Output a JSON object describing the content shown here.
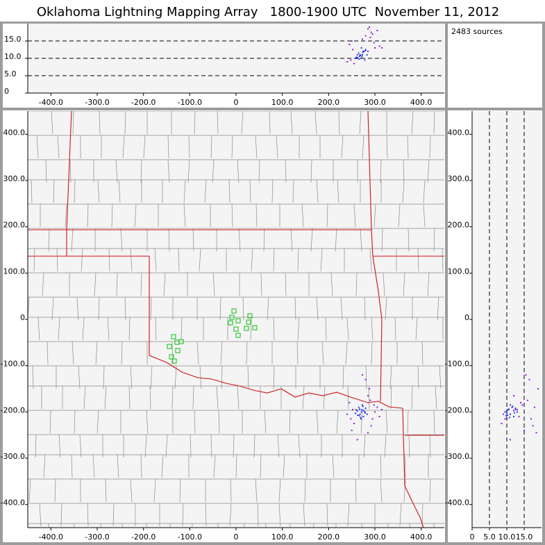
{
  "title": "Oklahoma Lightning Mapping Array   1800-1900 UTC  November 11, 2012",
  "sources_label": "2483 sources",
  "chart_data": [
    {
      "type": "scatter",
      "panel": "top",
      "xlim": [
        -450,
        450
      ],
      "ylim": [
        0,
        20
      ],
      "xticks": [
        {
          "value": -400,
          "label": "-400.0"
        },
        {
          "value": -300,
          "label": "-300.0"
        },
        {
          "value": -200,
          "label": "-200.0"
        },
        {
          "value": -100,
          "label": "-100.0"
        },
        0,
        {
          "value": 100,
          "label": "100.0"
        },
        {
          "value": 200,
          "label": "200.0"
        },
        {
          "value": 300,
          "label": "300.0"
        },
        {
          "value": 400,
          "label": "400.0"
        }
      ],
      "yticks": [
        0,
        {
          "value": 5,
          "label": "5.0"
        },
        {
          "value": 10,
          "label": "10.0"
        },
        {
          "value": 15,
          "label": "15.0"
        }
      ],
      "grid": "y",
      "series": [
        {
          "color": "#9a18d8",
          "x": [
            245,
            290,
            300,
            255,
            295,
            285,
            250,
            305,
            240,
            288,
            310,
            262,
            280,
            298,
            252,
            292,
            273,
            248,
            315,
            285
          ],
          "values": [
            14,
            16,
            13,
            8.5,
            17,
            12,
            15,
            18,
            9,
            19,
            13.5,
            11,
            16.5,
            14.5,
            12.5,
            17.5,
            15.5,
            9.5,
            13,
            18.5
          ]
        },
        {
          "color": "#2a3ae8",
          "x": [
            262,
            268,
            272,
            275,
            278,
            265,
            270,
            280,
            258,
            273,
            266,
            276,
            283,
            260,
            271,
            269,
            274,
            263,
            279,
            267
          ],
          "values": [
            10,
            11,
            10.5,
            12,
            9.5,
            11.5,
            10,
            12.5,
            10,
            11,
            9.8,
            12,
            11,
            10.3,
            13,
            10.8,
            11.7,
            10.2,
            12.2,
            10.6
          ]
        }
      ]
    },
    {
      "type": "scatter",
      "panel": "main",
      "xlim": [
        -450,
        450
      ],
      "ylim": [
        -450,
        450
      ],
      "xticks": [
        {
          "value": -400,
          "label": "-400.0"
        },
        {
          "value": -300,
          "label": "-300.0"
        },
        {
          "value": -200,
          "label": "-200.0"
        },
        {
          "value": -100,
          "label": "-100.0"
        },
        0,
        {
          "value": 100,
          "label": "100.0"
        },
        {
          "value": 200,
          "label": "200.0"
        },
        {
          "value": 300,
          "label": "300.0"
        },
        {
          "value": 400,
          "label": "400.0"
        }
      ],
      "yticks": [
        {
          "value": -400,
          "label": "-400.0"
        },
        {
          "value": -300,
          "label": "-300.0"
        },
        {
          "value": -200,
          "label": "-200.0"
        },
        {
          "value": -100,
          "label": "-100.0"
        },
        0,
        {
          "value": 100,
          "label": "100.0"
        },
        {
          "value": 200,
          "label": "200.0"
        },
        {
          "value": 300,
          "label": "300.0"
        },
        {
          "value": 400,
          "label": "400.0"
        }
      ],
      "grid": "none",
      "stations": {
        "color": "#2ec82e",
        "x": [
          -4.5,
          -9,
          4.5,
          30,
          -12,
          27,
          22.5,
          0,
          40.5,
          4.5,
          -135,
          -127.5,
          -118.5,
          -144,
          -126,
          -139.5,
          -133.5
        ],
        "values": [
          18,
          4.5,
          -3,
          7.5,
          -7.5,
          -6,
          -19.5,
          -21,
          -18,
          -34.5,
          -37.5,
          -49.5,
          -48,
          -58.5,
          -67.5,
          -81,
          -90
        ]
      },
      "series": [
        {
          "color": "#9a18d8",
          "x": [
            245,
            290,
            300,
            255,
            295,
            285,
            250,
            305,
            240,
            288,
            310,
            262,
            280,
            298,
            252,
            292,
            273,
            248,
            315,
            285
          ],
          "values": [
            -180,
            -175,
            -200,
            -225,
            -215,
            -165,
            -240,
            -190,
            -205,
            -150,
            -210,
            -260,
            -130,
            -185,
            -195,
            -230,
            -120,
            -215,
            -195,
            -245
          ]
        },
        {
          "color": "#2a3ae8",
          "x": [
            262,
            268,
            272,
            275,
            278,
            265,
            270,
            280,
            258,
            273,
            266,
            276,
            283,
            260,
            271,
            269,
            274,
            263,
            279,
            267
          ],
          "values": [
            -198,
            -205,
            -195,
            -210,
            -200,
            -190,
            -215,
            -192,
            -203,
            -185,
            -208,
            -197,
            -205,
            -195,
            -200,
            -212,
            -188,
            -207,
            -202,
            -194
          ]
        }
      ]
    },
    {
      "type": "scatter",
      "panel": "right",
      "xlim": [
        0,
        20
      ],
      "ylim": [
        -450,
        450
      ],
      "xticks": [
        0,
        {
          "value": 5,
          "label": "5.0"
        },
        {
          "value": 10,
          "label": "10.0"
        },
        {
          "value": 15,
          "label": "15.0"
        }
      ],
      "yticks": [
        {
          "value": -400,
          "label": "-400.0"
        },
        {
          "value": -300,
          "label": "-300.0"
        },
        {
          "value": -200,
          "label": "-200.0"
        },
        {
          "value": -100,
          "label": "-100.0"
        },
        0,
        {
          "value": 100,
          "label": "100.0"
        },
        {
          "value": 200,
          "label": "200.0"
        },
        {
          "value": 300,
          "label": "300.0"
        },
        {
          "value": 400,
          "label": "400.0"
        }
      ],
      "grid": "x",
      "series": [
        {
          "color": "#9a18d8",
          "x": [
            14,
            16,
            13,
            8.5,
            17,
            12,
            15,
            18,
            9,
            19,
            13.5,
            11,
            16.5,
            14.5,
            12.5,
            17.5,
            15.5,
            9.5,
            13,
            18.5
          ],
          "values": [
            -180,
            -175,
            -200,
            -225,
            -215,
            -165,
            -240,
            -190,
            -205,
            -150,
            -210,
            -260,
            -130,
            -185,
            -195,
            -230,
            -120,
            -215,
            -195,
            -245
          ]
        },
        {
          "color": "#2a3ae8",
          "x": [
            10,
            11,
            10.5,
            12,
            9.5,
            11.5,
            10,
            12.5,
            10,
            11,
            9.8,
            12,
            11,
            10.3,
            13,
            10.8,
            11.7,
            10.2,
            12.2,
            10.6
          ],
          "values": [
            -198,
            -205,
            -195,
            -210,
            -200,
            -190,
            -215,
            -192,
            -203,
            -185,
            -208,
            -197,
            -205,
            -195,
            -200,
            -212,
            -188,
            -207,
            -202,
            -194
          ]
        }
      ]
    }
  ]
}
